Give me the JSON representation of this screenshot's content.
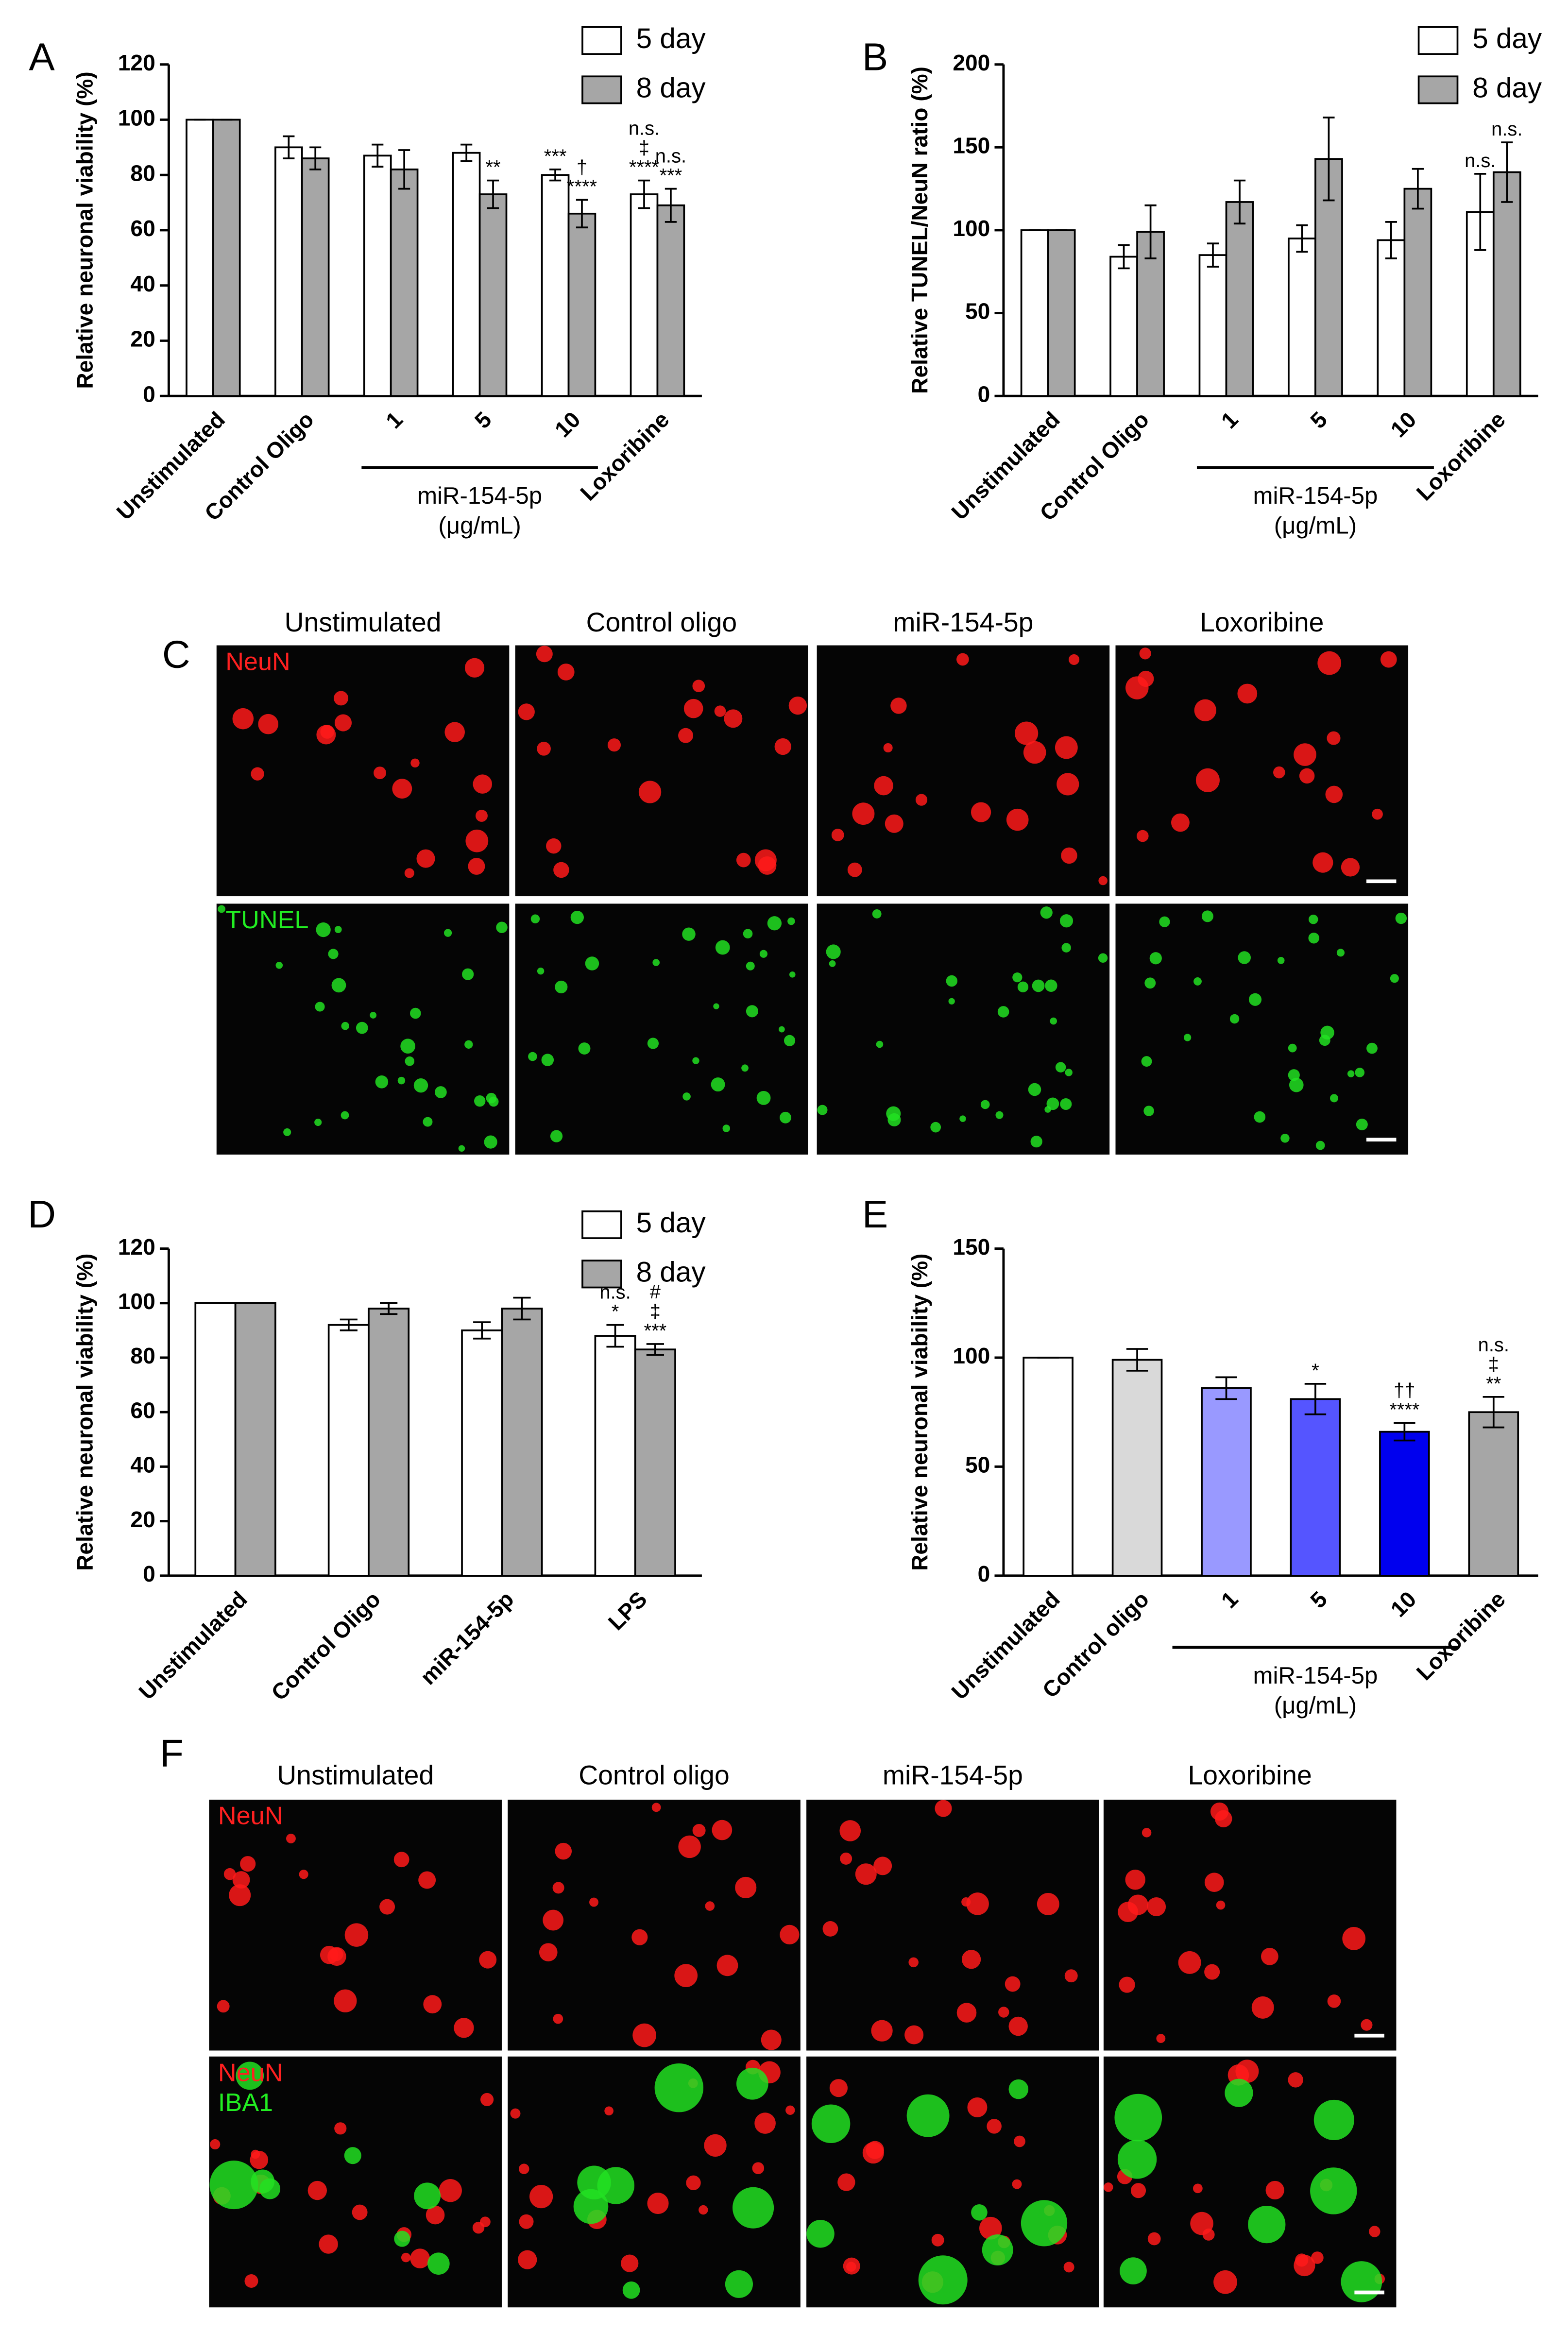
{
  "chart_data": [
    {
      "type": "bar",
      "label": "A",
      "ylabel": "Relative neuronal viability (%)",
      "categories": [
        "Unstimulated",
        "Control Oligo",
        "1",
        "5",
        "10",
        "Loxoribine"
      ],
      "group_label": [
        "miR-154-5p",
        "(μg/mL)"
      ],
      "series": [
        {
          "name": "5 day",
          "color": "#ffffff",
          "values": [
            100,
            90,
            87,
            88,
            80,
            73
          ],
          "errors": [
            0,
            4,
            4,
            3,
            2,
            5
          ],
          "annotations": [
            null,
            null,
            null,
            null,
            [
              "***"
            ],
            [
              "n.s.",
              "‡",
              "****"
            ]
          ]
        },
        {
          "name": "8 day",
          "color": "#a6a6a6",
          "values": [
            100,
            86,
            82,
            73,
            66,
            69
          ],
          "errors": [
            0,
            4,
            7,
            5,
            5,
            6
          ],
          "annotations": [
            null,
            null,
            null,
            [
              "**"
            ],
            [
              "†",
              "****"
            ],
            [
              "n.s.",
              "***"
            ]
          ]
        }
      ],
      "ylim": [
        0,
        120
      ],
      "yticks": [
        0,
        20,
        40,
        60,
        80,
        100,
        120
      ],
      "legend": "upper right"
    },
    {
      "type": "bar",
      "label": "B",
      "ylabel": "Relative TUNEL/NeuN ratio (%)",
      "categories": [
        "Unstimulated",
        "Control Oligo",
        "1",
        "5",
        "10",
        "Loxoribine"
      ],
      "group_label": [
        "miR-154-5p",
        "(μg/mL)"
      ],
      "series": [
        {
          "name": "5 day",
          "color": "#ffffff",
          "values": [
            100,
            84,
            85,
            95,
            94,
            111
          ],
          "errors": [
            0,
            7,
            7,
            8,
            11,
            23
          ],
          "annotations": [
            null,
            null,
            null,
            null,
            null,
            [
              "n.s."
            ]
          ]
        },
        {
          "name": "8 day",
          "color": "#a6a6a6",
          "values": [
            100,
            99,
            117,
            143,
            125,
            135
          ],
          "errors": [
            0,
            16,
            13,
            25,
            12,
            18
          ],
          "annotations": [
            null,
            null,
            null,
            null,
            null,
            [
              "n.s."
            ]
          ]
        }
      ],
      "ylim": [
        0,
        200
      ],
      "yticks": [
        0,
        50,
        100,
        150,
        200
      ],
      "legend": "upper right"
    },
    {
      "type": "bar",
      "label": "D",
      "ylabel": "Relative neuronal viability (%)",
      "categories": [
        "Unstimulated",
        "Control Oligo",
        "miR-154-5p",
        "LPS"
      ],
      "series": [
        {
          "name": "5 day",
          "color": "#ffffff",
          "values": [
            100,
            92,
            90,
            88
          ],
          "errors": [
            0,
            2,
            3,
            4
          ],
          "annotations": [
            null,
            null,
            null,
            [
              "n.s.",
              "*"
            ]
          ]
        },
        {
          "name": "8 day",
          "color": "#a6a6a6",
          "values": [
            100,
            98,
            98,
            83
          ],
          "errors": [
            0,
            2,
            4,
            2
          ],
          "annotations": [
            null,
            null,
            null,
            [
              "#",
              "‡",
              "***"
            ]
          ]
        }
      ],
      "ylim": [
        0,
        120
      ],
      "yticks": [
        0,
        20,
        40,
        60,
        80,
        100,
        120
      ],
      "legend": "upper right"
    },
    {
      "type": "bar",
      "label": "E",
      "ylabel": "Relative neuronal viability (%)",
      "categories": [
        "Unstimulated",
        "Control oligo",
        "1",
        "5",
        "10",
        "Loxoribine"
      ],
      "group_label": [
        "miR-154-5p",
        "(μg/mL)"
      ],
      "series": [
        {
          "colors": [
            "#ffffff",
            "#d9d9d9",
            "#9999ff",
            "#5555ff",
            "#0000ee",
            "#a6a6a6"
          ],
          "values": [
            100,
            99,
            86,
            81,
            66,
            75
          ],
          "errors": [
            0,
            5,
            5,
            7,
            4,
            7
          ],
          "annotations": [
            null,
            null,
            null,
            [
              "*"
            ],
            [
              "††",
              "****"
            ],
            [
              "n.s.",
              "‡",
              "**"
            ]
          ]
        }
      ],
      "ylim": [
        0,
        150
      ],
      "yticks": [
        0,
        50,
        100,
        150
      ]
    }
  ],
  "image_panels": [
    {
      "label": "C",
      "columns": [
        "Unstimulated",
        "Control oligo",
        "miR-154-5p",
        "Loxoribine"
      ],
      "rows": [
        [
          "NeuN"
        ],
        [
          "TUNEL"
        ]
      ]
    },
    {
      "label": "F",
      "columns": [
        "Unstimulated",
        "Control oligo",
        "miR-154-5p",
        "Loxoribine"
      ],
      "rows": [
        [
          "NeuN"
        ],
        [
          "NeuN",
          "IBA1"
        ]
      ]
    }
  ]
}
